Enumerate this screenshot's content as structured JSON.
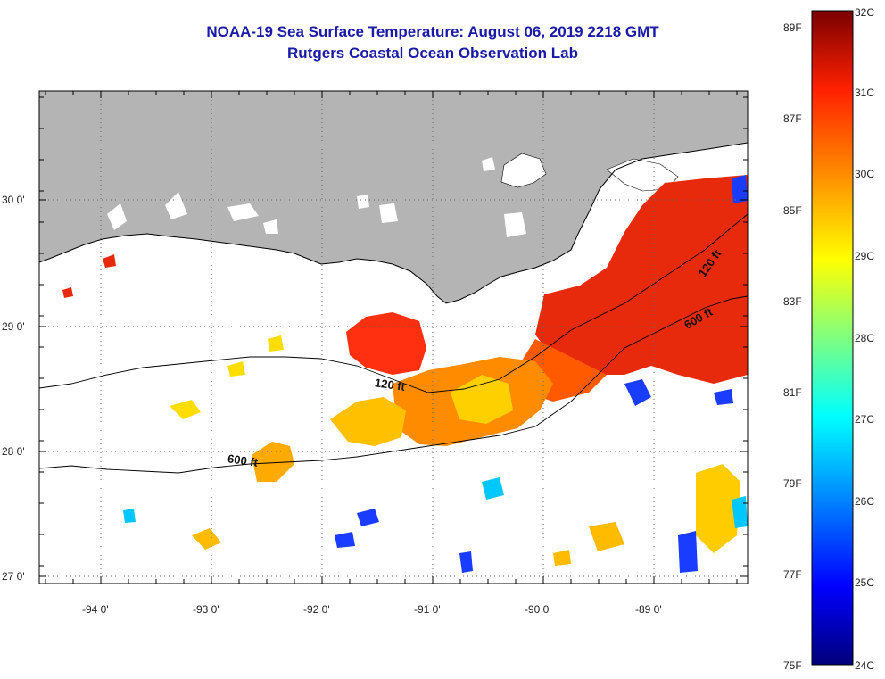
{
  "title": {
    "line1": "NOAA-19 Sea Surface Temperature:  August 06, 2019 2218 GMT",
    "line2": "Rutgers Coastal Ocean Observation Lab"
  },
  "axes": {
    "x_ticks": [
      "-94 0'",
      "-93 0'",
      "-92 0'",
      "-91 0'",
      "-90 0'",
      "-89 0'"
    ],
    "y_ticks": [
      "30 0'",
      "29 0'",
      "28 0'",
      "27 0'"
    ]
  },
  "contours": [
    "120 ft",
    "600 ft",
    "120 ft",
    "600 ft"
  ],
  "colorbar": {
    "celsius": [
      "32C",
      "31C",
      "30C",
      "29C",
      "28C",
      "27C",
      "26C",
      "25C",
      "24C"
    ],
    "fahrenheit": [
      "89F",
      "87F",
      "85F",
      "83F",
      "81F",
      "79F",
      "77F",
      "75F"
    ]
  },
  "colors": {
    "land": "#b4b4b4",
    "title": "#1a1aa6"
  }
}
